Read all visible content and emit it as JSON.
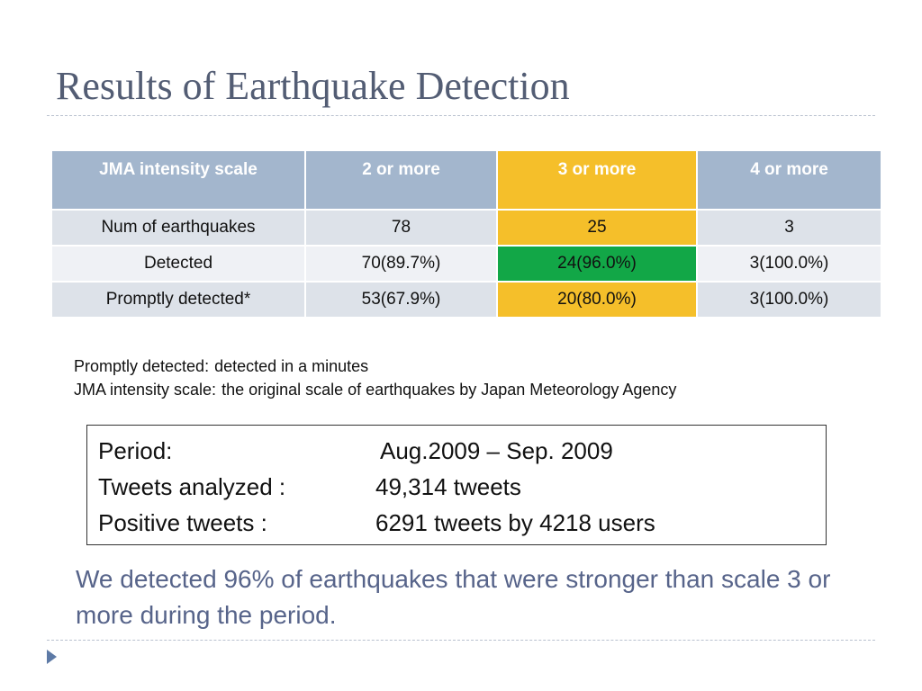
{
  "slide": {
    "title": "Results of Earthquake Detection"
  },
  "table": {
    "headers": [
      "JMA intensity scale",
      "2 or more",
      "3 or more",
      "4 or more"
    ],
    "rows": [
      [
        "Num of earthquakes",
        "78",
        "25",
        "3"
      ],
      [
        "Detected",
        "70(89.7%)",
        "24(96.0%)",
        "3(100.0%)"
      ],
      [
        "Promptly detected*",
        "53(67.9%)",
        "20(80.0%)",
        "3(100.0%)"
      ]
    ]
  },
  "notes": {
    "line1_term": "Promptly detected:",
    "line1_def": "detected in a minutes",
    "line2_term": "JMA intensity scale:",
    "line2_def": "the original scale of earthquakes by Japan Meteorology Agency"
  },
  "stats": [
    {
      "label": "Period:",
      "value": "Aug.2009 – Sep. 2009"
    },
    {
      "label": "Tweets analyzed :",
      "value": "49,314 tweets"
    },
    {
      "label": "Positive  tweets :",
      "value": "6291 tweets by 4218 users"
    }
  ],
  "conclusion": "We detected 96% of earthquakes that were stronger than scale 3 or more during the period.",
  "colors": {
    "header_blue": "#a3b6cd",
    "highlight_yellow": "#f5bf2a",
    "highlight_green": "#12a747",
    "title_text": "#535d74",
    "conclusion_text": "#57648a"
  },
  "icons": {
    "nav": "triangle-right-icon"
  }
}
